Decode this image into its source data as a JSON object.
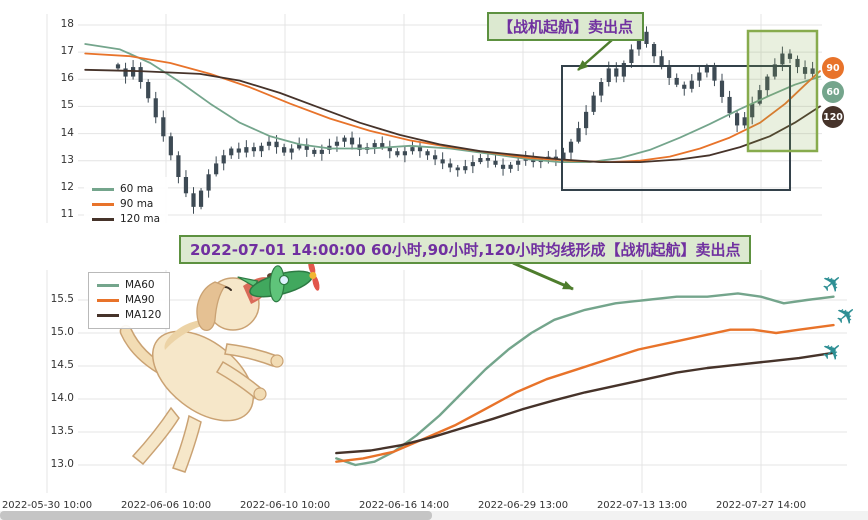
{
  "colors": {
    "ma60": "#74a58c",
    "ma90": "#e8732a",
    "ma120": "#46332a",
    "candle": "#3d4a54",
    "grid": "#e4e4e4",
    "annotation_bg": "#dce9d0",
    "annotation_border": "#5d9140",
    "annotation_text": "#7030a0",
    "highlight_box": "#33414a",
    "highlight_box_green": "#87ab4d",
    "arrow": "#4e7d2d",
    "airplane": "#2e8f94",
    "axis_text": "#333333",
    "scrollbar_thumb": "#c5c5c5",
    "scrollbar_track": "#f2f2f2"
  },
  "top_chart": {
    "y_ticks": [
      18,
      17,
      16,
      15,
      14,
      13,
      12,
      11
    ],
    "legend": [
      {
        "label": "60 ma",
        "color_key": "ma60"
      },
      {
        "label": "90 ma",
        "color_key": "ma90"
      },
      {
        "label": "120 ma",
        "color_key": "ma120"
      }
    ],
    "annotation_label": "【战机起航】卖出点",
    "badges": [
      {
        "label": "90",
        "color_key": "ma90"
      },
      {
        "label": "60",
        "color_key": "ma60"
      },
      {
        "label": "120",
        "color_key": "ma120"
      }
    ]
  },
  "callout": {
    "text": "2022-07-01 14:00:00 60小时,90小时,120小时均线形成【战机起航】卖出点"
  },
  "bottom_chart": {
    "y_ticks": [
      "15.5",
      "15.0",
      "14.5",
      "14.0",
      "13.5",
      "13.0"
    ],
    "legend": [
      {
        "label": "MA60",
        "color_key": "ma60"
      },
      {
        "label": "MA90",
        "color_key": "ma90"
      },
      {
        "label": "MA120",
        "color_key": "ma120"
      }
    ]
  },
  "icons": {
    "airplane": "✈"
  },
  "chart_data": [
    {
      "type": "candlestick",
      "title": "",
      "ylim": [
        11,
        18
      ],
      "x_labels": [
        "2022-05-30 10:00",
        "2022-06-06 10:00",
        "2022-06-10 10:00",
        "2022-06-16 14:00",
        "2022-06-29 13:00",
        "2022-07-13 13:00",
        "2022-07-27 14:00"
      ],
      "candles_close": [
        16.4,
        16.1,
        16.45,
        15.9,
        15.3,
        14.6,
        13.9,
        13.2,
        12.4,
        11.8,
        11.3,
        11.9,
        12.5,
        12.9,
        13.2,
        13.45,
        13.3,
        13.5,
        13.35,
        13.55,
        13.7,
        13.5,
        13.3,
        13.45,
        13.6,
        13.4,
        13.25,
        13.4,
        13.55,
        13.7,
        13.85,
        13.6,
        13.4,
        13.5,
        13.65,
        13.5,
        13.35,
        13.2,
        13.35,
        13.5,
        13.35,
        13.2,
        13.05,
        12.9,
        12.75,
        12.65,
        12.8,
        12.95,
        13.1,
        13.0,
        12.85,
        12.7,
        12.85,
        13.0,
        13.1,
        12.95,
        13.05,
        13.15,
        13.05,
        13.3,
        13.7,
        14.2,
        14.8,
        15.4,
        15.9,
        16.4,
        16.1,
        16.6,
        17.1,
        17.75,
        17.3,
        16.85,
        16.45,
        16.05,
        15.8,
        15.65,
        15.95,
        16.25,
        16.45,
        15.95,
        15.35,
        14.75,
        14.3,
        14.6,
        15.1,
        15.6,
        16.1,
        16.55,
        16.95,
        16.75,
        16.45,
        16.2,
        16.4
      ],
      "series": [
        {
          "name": "60 ma",
          "color_key": "ma60",
          "points": [
            [
              0.007,
              17.3
            ],
            [
              0.054,
              17.1
            ],
            [
              0.095,
              16.6
            ],
            [
              0.135,
              15.9
            ],
            [
              0.176,
              15.1
            ],
            [
              0.216,
              14.4
            ],
            [
              0.257,
              13.9
            ],
            [
              0.297,
              13.6
            ],
            [
              0.338,
              13.45
            ],
            [
              0.392,
              13.45
            ],
            [
              0.446,
              13.55
            ],
            [
              0.5,
              13.45
            ],
            [
              0.554,
              13.25
            ],
            [
              0.608,
              13.05
            ],
            [
              0.649,
              12.95
            ],
            [
              0.689,
              12.95
            ],
            [
              0.73,
              13.1
            ],
            [
              0.77,
              13.4
            ],
            [
              0.811,
              13.85
            ],
            [
              0.851,
              14.35
            ],
            [
              0.892,
              14.9
            ],
            [
              0.932,
              15.4
            ],
            [
              0.966,
              15.8
            ],
            [
              1,
              16.1
            ]
          ]
        },
        {
          "name": "90 ma",
          "color_key": "ma90",
          "points": [
            [
              0.007,
              16.95
            ],
            [
              0.068,
              16.85
            ],
            [
              0.122,
              16.6
            ],
            [
              0.176,
              16.2
            ],
            [
              0.23,
              15.7
            ],
            [
              0.284,
              15.1
            ],
            [
              0.338,
              14.55
            ],
            [
              0.392,
              14.1
            ],
            [
              0.446,
              13.75
            ],
            [
              0.5,
              13.5
            ],
            [
              0.554,
              13.3
            ],
            [
              0.608,
              13.1
            ],
            [
              0.662,
              13.0
            ],
            [
              0.716,
              12.95
            ],
            [
              0.757,
              13.0
            ],
            [
              0.797,
              13.15
            ],
            [
              0.838,
              13.45
            ],
            [
              0.878,
              13.85
            ],
            [
              0.919,
              14.4
            ],
            [
              0.953,
              15.1
            ],
            [
              0.98,
              15.8
            ],
            [
              1,
              16.3
            ]
          ]
        },
        {
          "name": "120 ma",
          "color_key": "ma120",
          "points": [
            [
              0.007,
              16.35
            ],
            [
              0.081,
              16.3
            ],
            [
              0.162,
              16.2
            ],
            [
              0.216,
              15.95
            ],
            [
              0.27,
              15.5
            ],
            [
              0.324,
              14.95
            ],
            [
              0.378,
              14.4
            ],
            [
              0.432,
              13.95
            ],
            [
              0.486,
              13.6
            ],
            [
              0.541,
              13.35
            ],
            [
              0.595,
              13.2
            ],
            [
              0.649,
              13.05
            ],
            [
              0.703,
              12.95
            ],
            [
              0.757,
              12.95
            ],
            [
              0.811,
              13.05
            ],
            [
              0.851,
              13.2
            ],
            [
              0.892,
              13.5
            ],
            [
              0.932,
              13.9
            ],
            [
              0.966,
              14.4
            ],
            [
              1,
              15.0
            ]
          ]
        }
      ]
    },
    {
      "type": "line",
      "title": "",
      "ylim": [
        12.7,
        15.9
      ],
      "x_labels": [
        "2022-05-30 10:00",
        "2022-06-06 10:00",
        "2022-06-10 10:00",
        "2022-06-16 14:00",
        "2022-06-29 13:00",
        "2022-07-13 13:00",
        "2022-07-27 14:00"
      ],
      "series": [
        {
          "name": "MA60",
          "color_key": "ma60",
          "points": [
            [
              0.335,
              13.1
            ],
            [
              0.36,
              13.0
            ],
            [
              0.385,
              13.05
            ],
            [
              0.41,
              13.2
            ],
            [
              0.44,
              13.45
            ],
            [
              0.47,
              13.75
            ],
            [
              0.5,
              14.1
            ],
            [
              0.53,
              14.45
            ],
            [
              0.56,
              14.75
            ],
            [
              0.59,
              15.0
            ],
            [
              0.62,
              15.2
            ],
            [
              0.66,
              15.35
            ],
            [
              0.7,
              15.45
            ],
            [
              0.74,
              15.5
            ],
            [
              0.78,
              15.55
            ],
            [
              0.82,
              15.55
            ],
            [
              0.86,
              15.6
            ],
            [
              0.89,
              15.55
            ],
            [
              0.92,
              15.45
            ],
            [
              0.95,
              15.5
            ],
            [
              0.985,
              15.55
            ]
          ]
        },
        {
          "name": "MA90",
          "color_key": "ma90",
          "points": [
            [
              0.335,
              13.05
            ],
            [
              0.37,
              13.1
            ],
            [
              0.41,
              13.2
            ],
            [
              0.45,
              13.4
            ],
            [
              0.49,
              13.6
            ],
            [
              0.53,
              13.85
            ],
            [
              0.57,
              14.1
            ],
            [
              0.61,
              14.3
            ],
            [
              0.65,
              14.45
            ],
            [
              0.69,
              14.6
            ],
            [
              0.73,
              14.75
            ],
            [
              0.77,
              14.85
            ],
            [
              0.81,
              14.95
            ],
            [
              0.85,
              15.05
            ],
            [
              0.88,
              15.05
            ],
            [
              0.91,
              15.0
            ],
            [
              0.94,
              15.05
            ],
            [
              0.985,
              15.12
            ]
          ]
        },
        {
          "name": "MA120",
          "color_key": "ma120",
          "points": [
            [
              0.335,
              13.18
            ],
            [
              0.38,
              13.22
            ],
            [
              0.42,
              13.3
            ],
            [
              0.46,
              13.42
            ],
            [
              0.5,
              13.56
            ],
            [
              0.54,
              13.7
            ],
            [
              0.58,
              13.85
            ],
            [
              0.62,
              13.98
            ],
            [
              0.66,
              14.1
            ],
            [
              0.7,
              14.2
            ],
            [
              0.74,
              14.3
            ],
            [
              0.78,
              14.4
            ],
            [
              0.82,
              14.47
            ],
            [
              0.86,
              14.52
            ],
            [
              0.9,
              14.57
            ],
            [
              0.94,
              14.62
            ],
            [
              0.985,
              14.7
            ]
          ]
        }
      ]
    }
  ]
}
